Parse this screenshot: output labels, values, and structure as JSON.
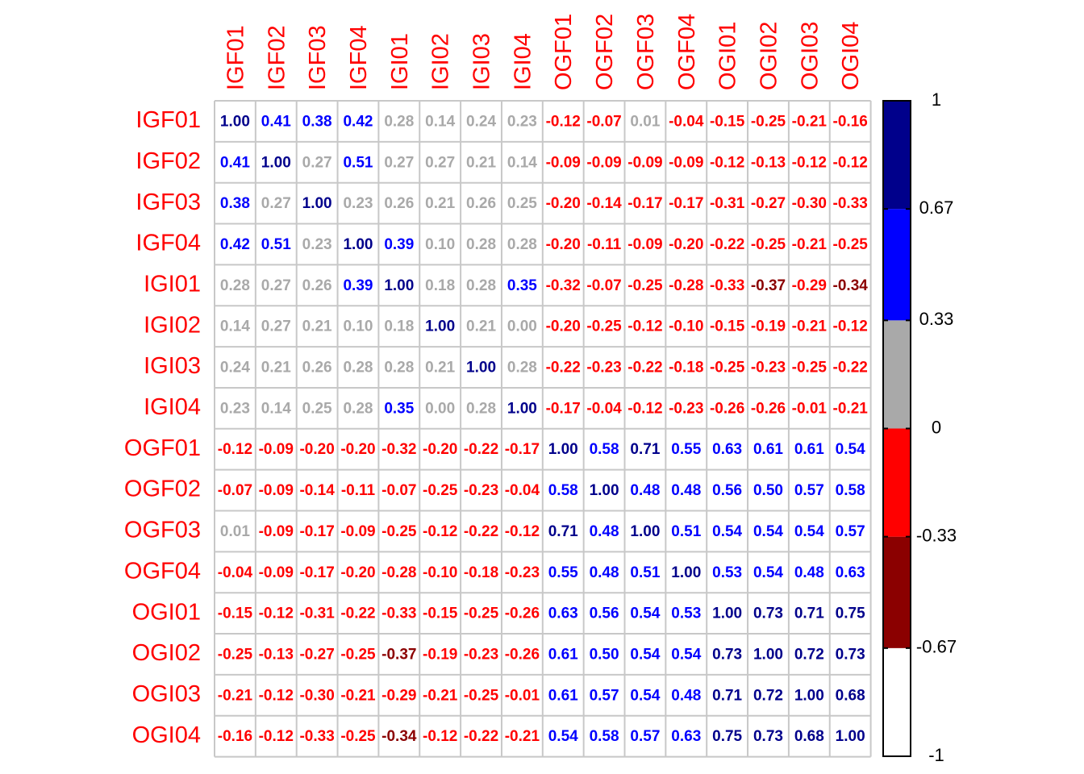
{
  "chart_data": {
    "type": "heatmap",
    "title": "",
    "row_labels": [
      "IGF01",
      "IGF02",
      "IGF03",
      "IGF04",
      "IGI01",
      "IGI02",
      "IGI03",
      "IGI04",
      "OGF01",
      "OGF02",
      "OGF03",
      "OGF04",
      "OGI01",
      "OGI02",
      "OGI03",
      "OGI04"
    ],
    "col_labels": [
      "IGF01",
      "IGF02",
      "IGF03",
      "IGF04",
      "IGI01",
      "IGI02",
      "IGI03",
      "IGI04",
      "OGF01",
      "OGF02",
      "OGF03",
      "OGF04",
      "OGI01",
      "OGI02",
      "OGI03",
      "OGI04"
    ],
    "values": [
      [
        "1.00",
        "0.41",
        "0.38",
        "0.42",
        "0.28",
        "0.14",
        "0.24",
        "0.23",
        "-0.12",
        "-0.07",
        "0.01",
        "-0.04",
        "-0.15",
        "-0.25",
        "-0.21",
        "-0.16"
      ],
      [
        "0.41",
        "1.00",
        "0.27",
        "0.51",
        "0.27",
        "0.27",
        "0.21",
        "0.14",
        "-0.09",
        "-0.09",
        "-0.09",
        "-0.09",
        "-0.12",
        "-0.13",
        "-0.12",
        "-0.12"
      ],
      [
        "0.38",
        "0.27",
        "1.00",
        "0.23",
        "0.26",
        "0.21",
        "0.26",
        "0.25",
        "-0.20",
        "-0.14",
        "-0.17",
        "-0.17",
        "-0.31",
        "-0.27",
        "-0.30",
        "-0.33"
      ],
      [
        "0.42",
        "0.51",
        "0.23",
        "1.00",
        "0.39",
        "0.10",
        "0.28",
        "0.28",
        "-0.20",
        "-0.11",
        "-0.09",
        "-0.20",
        "-0.22",
        "-0.25",
        "-0.21",
        "-0.25"
      ],
      [
        "0.28",
        "0.27",
        "0.26",
        "0.39",
        "1.00",
        "0.18",
        "0.28",
        "0.35",
        "-0.32",
        "-0.07",
        "-0.25",
        "-0.28",
        "-0.33",
        "-0.37",
        "-0.29",
        "-0.34"
      ],
      [
        "0.14",
        "0.27",
        "0.21",
        "0.10",
        "0.18",
        "1.00",
        "0.21",
        "0.00",
        "-0.20",
        "-0.25",
        "-0.12",
        "-0.10",
        "-0.15",
        "-0.19",
        "-0.21",
        "-0.12"
      ],
      [
        "0.24",
        "0.21",
        "0.26",
        "0.28",
        "0.28",
        "0.21",
        "1.00",
        "0.28",
        "-0.22",
        "-0.23",
        "-0.22",
        "-0.18",
        "-0.25",
        "-0.23",
        "-0.25",
        "-0.22"
      ],
      [
        "0.23",
        "0.14",
        "0.25",
        "0.28",
        "0.35",
        "0.00",
        "0.28",
        "1.00",
        "-0.17",
        "-0.04",
        "-0.12",
        "-0.23",
        "-0.26",
        "-0.26",
        "-0.01",
        "-0.21"
      ],
      [
        "-0.12",
        "-0.09",
        "-0.20",
        "-0.20",
        "-0.32",
        "-0.20",
        "-0.22",
        "-0.17",
        "1.00",
        "0.58",
        "0.71",
        "0.55",
        "0.63",
        "0.61",
        "0.61",
        "0.54"
      ],
      [
        "-0.07",
        "-0.09",
        "-0.14",
        "-0.11",
        "-0.07",
        "-0.25",
        "-0.23",
        "-0.04",
        "0.58",
        "1.00",
        "0.48",
        "0.48",
        "0.56",
        "0.50",
        "0.57",
        "0.58"
      ],
      [
        "0.01",
        "-0.09",
        "-0.17",
        "-0.09",
        "-0.25",
        "-0.12",
        "-0.22",
        "-0.12",
        "0.71",
        "0.48",
        "1.00",
        "0.51",
        "0.54",
        "0.54",
        "0.54",
        "0.57"
      ],
      [
        "-0.04",
        "-0.09",
        "-0.17",
        "-0.20",
        "-0.28",
        "-0.10",
        "-0.18",
        "-0.23",
        "0.55",
        "0.48",
        "0.51",
        "1.00",
        "0.53",
        "0.54",
        "0.48",
        "0.63"
      ],
      [
        "-0.15",
        "-0.12",
        "-0.31",
        "-0.22",
        "-0.33",
        "-0.15",
        "-0.25",
        "-0.26",
        "0.63",
        "0.56",
        "0.54",
        "0.53",
        "1.00",
        "0.73",
        "0.71",
        "0.75"
      ],
      [
        "-0.25",
        "-0.13",
        "-0.27",
        "-0.25",
        "-0.37",
        "-0.19",
        "-0.23",
        "-0.26",
        "0.61",
        "0.50",
        "0.54",
        "0.54",
        "0.73",
        "1.00",
        "0.72",
        "0.73"
      ],
      [
        "-0.21",
        "-0.12",
        "-0.30",
        "-0.21",
        "-0.29",
        "-0.21",
        "-0.25",
        "-0.01",
        "0.61",
        "0.57",
        "0.54",
        "0.48",
        "0.71",
        "0.72",
        "1.00",
        "0.68"
      ],
      [
        "-0.16",
        "-0.12",
        "-0.33",
        "-0.25",
        "-0.34",
        "-0.12",
        "-0.22",
        "-0.21",
        "0.54",
        "0.58",
        "0.57",
        "0.63",
        "0.75",
        "0.73",
        "0.68",
        "1.00"
      ]
    ],
    "color_scale": {
      "range": [
        -1,
        1
      ],
      "bins": [
        {
          "min": -1,
          "max": -0.67,
          "color": "#FFFFFF"
        },
        {
          "min": -0.67,
          "max": -0.33,
          "color": "#8B0000"
        },
        {
          "min": -0.33,
          "max": 0,
          "color": "#FF0000"
        },
        {
          "min": 0,
          "max": 0.33,
          "color": "#A9A9A9"
        },
        {
          "min": 0.33,
          "max": 0.67,
          "color": "#0000FF"
        },
        {
          "min": 0.67,
          "max": 1,
          "color": "#00008B"
        }
      ],
      "tick_labels": [
        "1",
        "0.67",
        "0.33",
        "0",
        "-0.33",
        "-0.67",
        "-1"
      ],
      "tick_values": [
        1,
        0.67,
        0.33,
        0,
        -0.33,
        -0.67,
        -1
      ]
    },
    "label_color": "#FF0000",
    "grid": true,
    "grid_color": "#C8C8C8",
    "legend_placement": "right"
  }
}
